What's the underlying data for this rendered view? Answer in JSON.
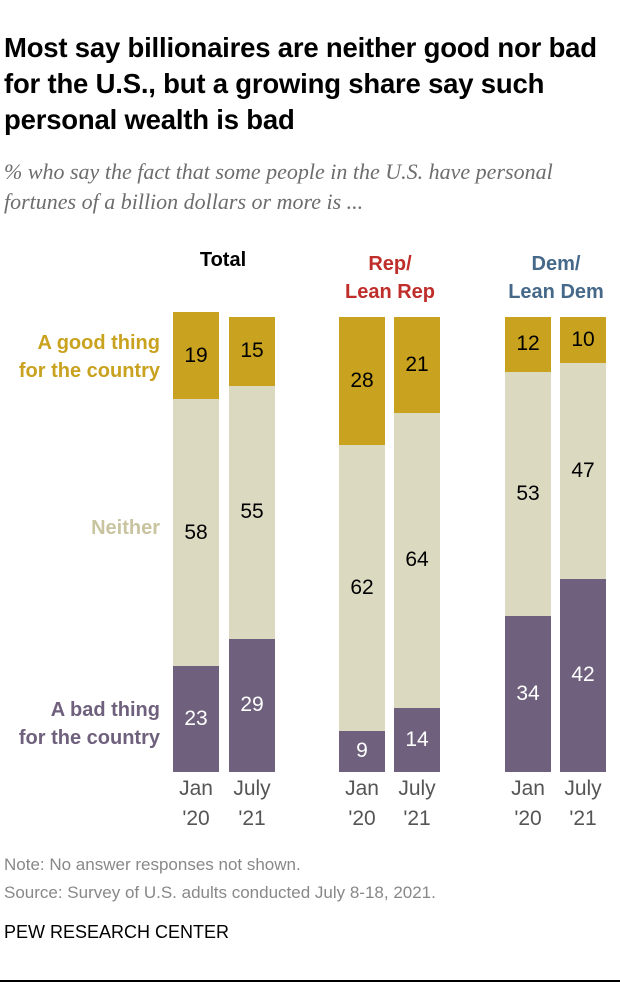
{
  "chart_data": {
    "type": "bar",
    "stacked": true,
    "title": "Most say billionaires are neither good nor bad for the U.S., but a growing share say such personal wealth is bad",
    "subtitle": "% who say the fact that some people in the U.S. have personal fortunes of a billion dollars or more is ...",
    "groups": [
      {
        "name": "Total",
        "color": "#000000",
        "categories": [
          "Jan '20",
          "July '21"
        ]
      },
      {
        "name": "Rep/ Lean Rep",
        "color": "#BF2E2A",
        "categories": [
          "Jan '20",
          "July '21"
        ]
      },
      {
        "name": "Dem/ Lean Dem",
        "color": "#46698A",
        "categories": [
          "Jan '20",
          "July '21"
        ]
      }
    ],
    "x_labels": [
      [
        "Jan",
        "'20"
      ],
      [
        "July",
        "'21"
      ]
    ],
    "series": [
      {
        "name": "A good thing for the country",
        "color": "#C9A21F",
        "label_color": "#C9A21F",
        "values": [
          19,
          15,
          28,
          21,
          12,
          10
        ]
      },
      {
        "name": "Neither",
        "color": "#DCD9C1",
        "label_color": "#C9C4A0",
        "values": [
          58,
          55,
          62,
          64,
          53,
          47
        ]
      },
      {
        "name": "A bad thing for the country",
        "color": "#6F617D",
        "label_color": "#6F617D",
        "values": [
          23,
          29,
          9,
          14,
          34,
          42
        ]
      }
    ],
    "ylim": [
      0,
      100
    ],
    "grid": false,
    "legend": "left"
  },
  "footer": {
    "note": "Note: No answer responses not shown.",
    "source": "Source: Survey of U.S. adults conducted July 8-18, 2021.",
    "brand": "PEW RESEARCH CENTER"
  }
}
